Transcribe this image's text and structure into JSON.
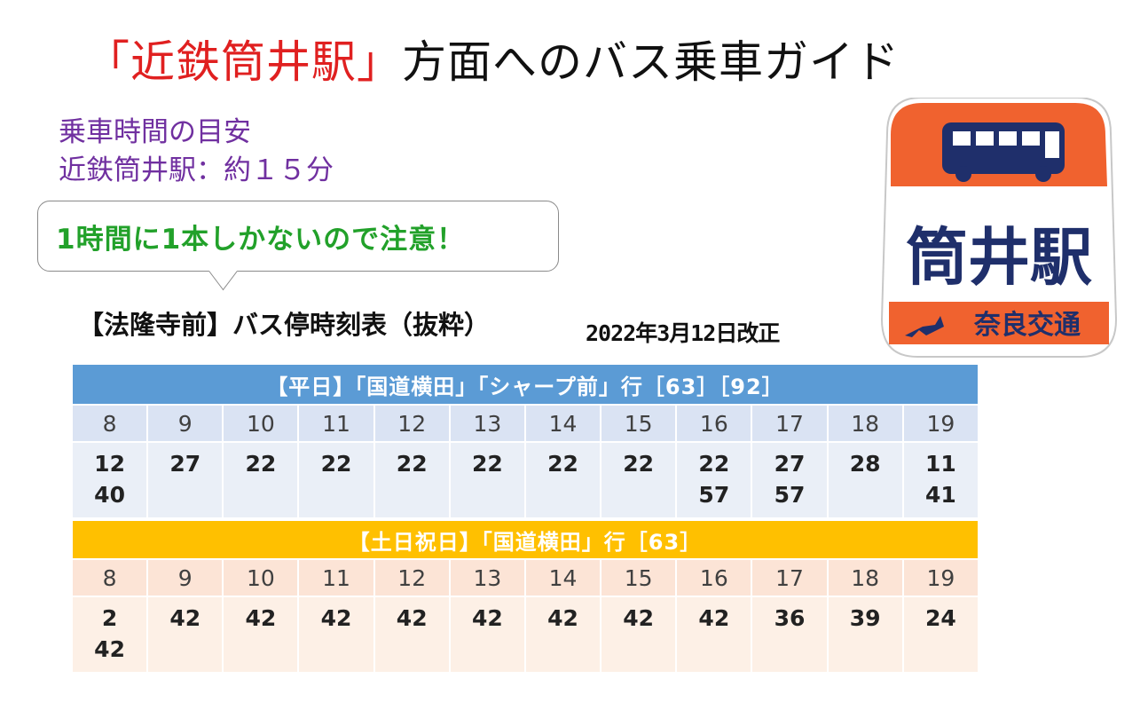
{
  "title": {
    "red": "「近鉄筒井駅」",
    "black": "方面へのバス乗車ガイド"
  },
  "ride_time": {
    "line1": "乗車時間の目安",
    "line2": "近鉄筒井駅：約１５分"
  },
  "notice": "1時間に1本しかないので注意！",
  "timetable_heading": "【法隆寺前】バス停時刻表（抜粋）",
  "revision": "2022年3月12日改正",
  "sign": {
    "station": "筒井駅",
    "company": "奈良交通",
    "orange": "#f0622f",
    "navy": "#1f2f6b"
  },
  "weekday": {
    "banner": "【平日】「国道横田」「シャープ前」行［63］［92］",
    "hours": [
      "8",
      "9",
      "10",
      "11",
      "12",
      "13",
      "14",
      "15",
      "16",
      "17",
      "18",
      "19"
    ],
    "minutes": [
      "12\n40",
      "27",
      "22",
      "22",
      "22",
      "22",
      "22",
      "22",
      "22\n57",
      "27\n57",
      "28",
      "11\n41"
    ]
  },
  "holiday": {
    "banner": "【土日祝日】「国道横田」行［63］",
    "hours": [
      "8",
      "9",
      "10",
      "11",
      "12",
      "13",
      "14",
      "15",
      "16",
      "17",
      "18",
      "19"
    ],
    "minutes": [
      "2\n42",
      "42",
      "42",
      "42",
      "42",
      "42",
      "42",
      "42",
      "42",
      "36",
      "39",
      "24"
    ]
  }
}
